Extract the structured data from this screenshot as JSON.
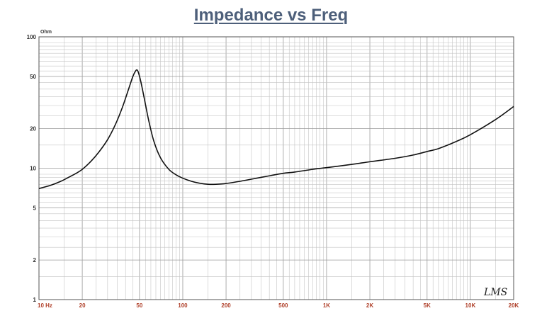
{
  "chart_data": {
    "type": "line",
    "title": "Impedance vs Freq",
    "y_unit": "Ohm",
    "x_scale": "log",
    "y_scale": "log",
    "xlim": [
      10,
      20000
    ],
    "ylim": [
      1,
      100
    ],
    "grid": true,
    "x_ticks": [
      {
        "value": 10,
        "label": "10  Hz"
      },
      {
        "value": 20,
        "label": "20"
      },
      {
        "value": 50,
        "label": "50"
      },
      {
        "value": 100,
        "label": "100"
      },
      {
        "value": 200,
        "label": "200"
      },
      {
        "value": 500,
        "label": "500"
      },
      {
        "value": 1000,
        "label": "1K"
      },
      {
        "value": 2000,
        "label": "2K"
      },
      {
        "value": 5000,
        "label": "5K"
      },
      {
        "value": 10000,
        "label": "10K"
      },
      {
        "value": 20000,
        "label": "20K"
      }
    ],
    "y_ticks": [
      {
        "value": 1,
        "label": "1"
      },
      {
        "value": 2,
        "label": "2"
      },
      {
        "value": 5,
        "label": "5"
      },
      {
        "value": 10,
        "label": "10"
      },
      {
        "value": 20,
        "label": "20"
      },
      {
        "value": 50,
        "label": "50"
      },
      {
        "value": 100,
        "label": "100"
      }
    ],
    "series": [
      {
        "color": "#111111",
        "x": [
          10,
          12,
          14,
          16,
          18,
          20,
          23,
          26,
          30,
          34,
          38,
          42,
          45,
          47,
          48,
          49,
          51,
          54,
          58,
          63,
          70,
          80,
          90,
          100,
          115,
          130,
          150,
          170,
          200,
          250,
          300,
          400,
          500,
          600,
          800,
          1000,
          1500,
          2000,
          3000,
          4000,
          5000,
          6000,
          8000,
          10000,
          15000,
          20000
        ],
        "y": [
          7.0,
          7.4,
          7.9,
          8.5,
          9.1,
          9.8,
          11.3,
          13.2,
          16.5,
          21.5,
          29,
          40,
          50,
          55,
          56,
          54,
          46,
          34,
          23,
          16,
          12,
          9.8,
          8.9,
          8.4,
          7.95,
          7.7,
          7.55,
          7.55,
          7.65,
          7.95,
          8.25,
          8.75,
          9.15,
          9.35,
          9.8,
          10.1,
          10.7,
          11.2,
          11.9,
          12.6,
          13.4,
          14.1,
          16.0,
          18.0,
          23.5,
          29.5
        ]
      }
    ],
    "logo_text": "LMS"
  }
}
